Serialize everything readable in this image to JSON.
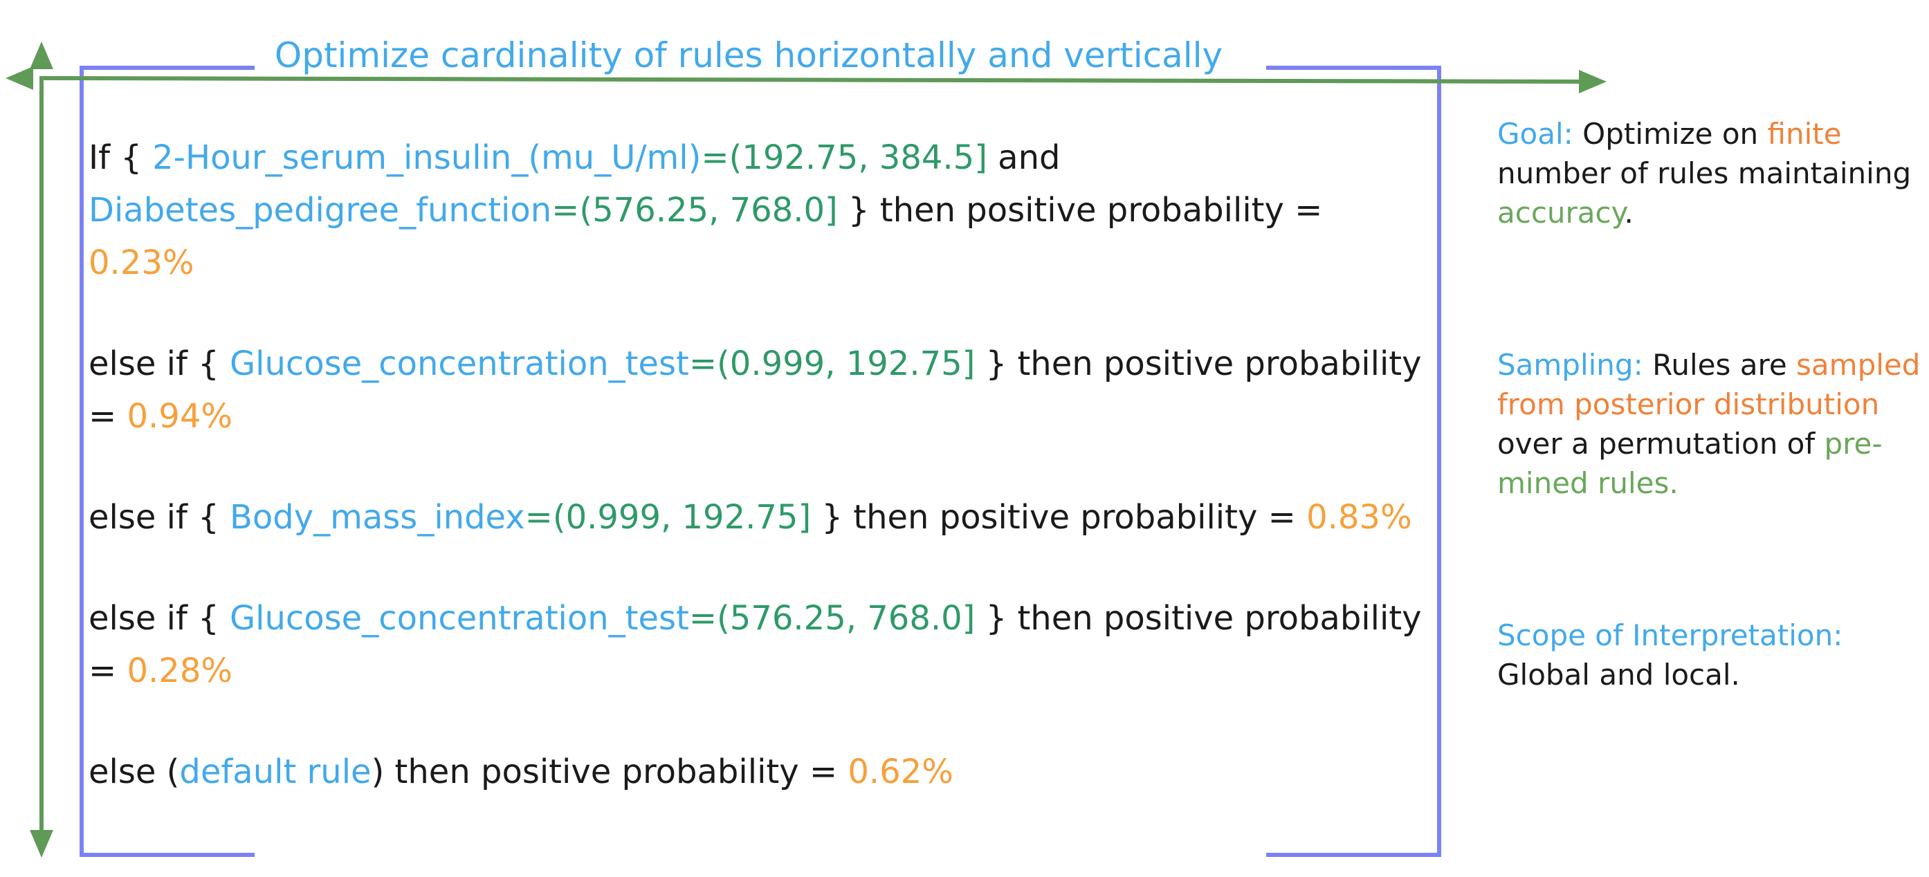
{
  "colors": {
    "feature": "#42a9ec",
    "interval": "#2e9a68",
    "probability": "#f7a03b",
    "note_highlight": "#f0823a",
    "note_green": "#6aa75a",
    "box_border": "#7b82f5",
    "arrow": "#5f9a57"
  },
  "top_caption": "Optimize cardinality of rules horizontally and vertically",
  "rules": {
    "r1": {
      "prefix": "If  { ",
      "feature1": "2-Hour_serum_insulin_(mu_U/ml)",
      "eq1": "=",
      "interval1": "(192.75, 384.5]",
      "and": " and",
      "feature2": "Diabetes_pedigree_function",
      "eq2": "=",
      "interval2": "(576.25, 768.0]",
      "then": " } then positive probability =",
      "prob": "0.23%"
    },
    "r2": {
      "prefix": "else if { ",
      "feature": "Glucose_concentration_test",
      "eq": "=",
      "interval": "(0.999, 192.75]",
      "then": " } then positive probability",
      "eq_prob": "= ",
      "prob": "0.94%"
    },
    "r3": {
      "prefix": "else if { ",
      "feature": "Body_mass_index",
      "eq": "=",
      "interval": "(0.999, 192.75]",
      "then": " } then positive probability = ",
      "prob": "0.83%"
    },
    "r4": {
      "prefix": "else if { ",
      "feature": "Glucose_concentration_test",
      "eq": "=",
      "interval": "(576.25, 768.0]",
      "then": " } then positive probability",
      "eq_prob": "= ",
      "prob": "0.28%"
    },
    "r5": {
      "prefix": "else  (",
      "feature": "default rule",
      "then": ")  then positive probability = ",
      "prob": "0.62%"
    }
  },
  "notes": {
    "goal": {
      "label": "Goal: ",
      "t1": "Optimize on ",
      "h1": "finite",
      "t2": "number of rules maintaining ",
      "h2": "accuracy",
      "t3": "."
    },
    "sampling": {
      "label": "Sampling: ",
      "t1": "Rules are ",
      "h1": "sampled from posterior distribution",
      "t2": " over a permutation of ",
      "h2": "pre-mined rules."
    },
    "scope": {
      "label": "Scope of Interpretation:",
      "t1": "Global and local."
    }
  }
}
